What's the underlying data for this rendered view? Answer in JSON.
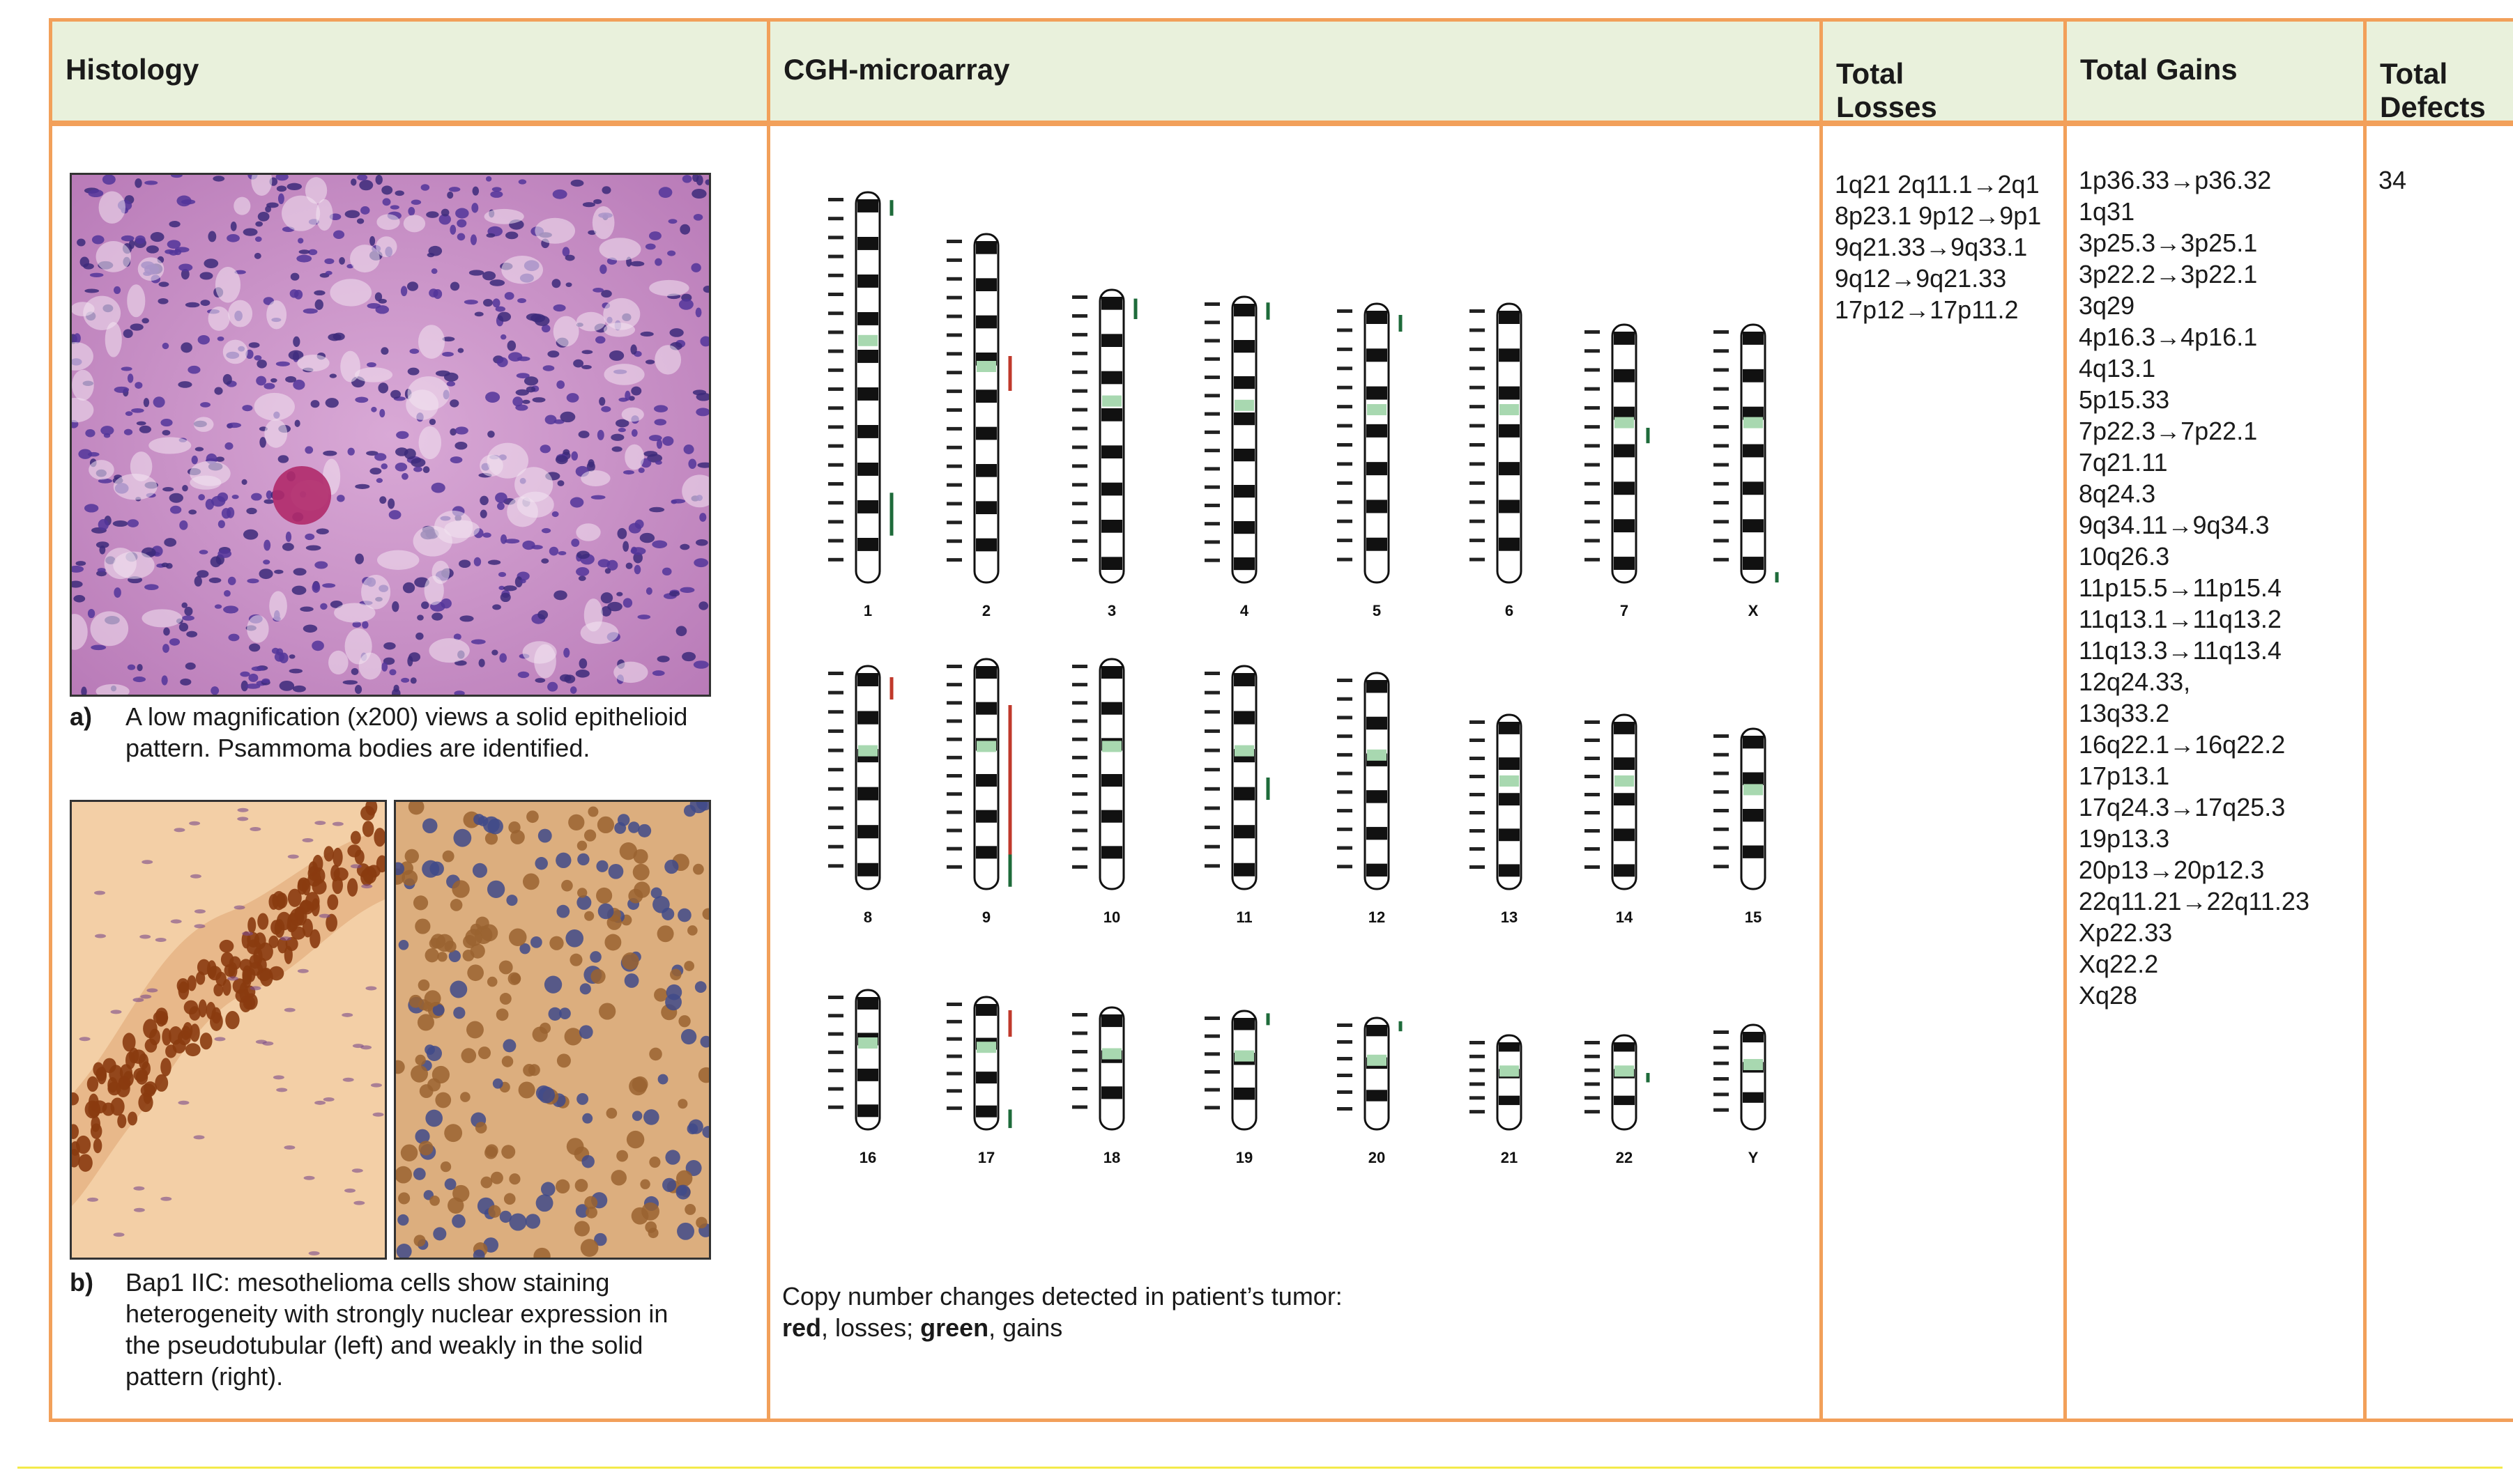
{
  "headers": {
    "histology": "Histology",
    "cgh": "CGH-microarray",
    "losses_line1": "Total",
    "losses_line2": "Losses",
    "gains": "Total Gains",
    "defects_line1": "Total",
    "defects_line2": "Defects"
  },
  "histology": {
    "caption_a_label": "a)",
    "caption_a_line1": "A low magnification (x200) views a solid epithelioid",
    "caption_a_line2": "pattern. Psammoma bodies are identified.",
    "caption_b_label": "b)",
    "caption_b_line1": "Bap1 IIC: mesothelioma cells show staining",
    "caption_b_line2": "heterogeneity with strongly nuclear expression in",
    "caption_b_line3": "the pseudotubular (left) and weakly in the solid",
    "caption_b_line4": "pattern (right).",
    "colors": {
      "he_stain": "#c98fc4",
      "ihc_stain": "#f1c79a"
    }
  },
  "cgh": {
    "row1": [
      "1",
      "2",
      "3",
      "4",
      "5",
      "6",
      "7",
      "X"
    ],
    "row2": [
      "8",
      "9",
      "10",
      "11",
      "12",
      "13",
      "14",
      "15"
    ],
    "row3": [
      "16",
      "17",
      "18",
      "19",
      "20",
      "21",
      "22",
      "Y"
    ],
    "legend_line1": "Copy number changes detected in patient’s tumor:",
    "legend_red": "red",
    "legend_mid": ", losses; ",
    "legend_green": "green",
    "legend_end": ", gains",
    "colors": {
      "loss": "#c0392b",
      "gain": "#1e6b3a",
      "centromere": "#a8d8b0"
    }
  },
  "losses": [
    "1q21 2q11.1→2q1",
    "8p23.1 9p12→9p1",
    "9q21.33→9q33.1",
    "9q12→9q21.33",
    "17p12→17p11.2"
  ],
  "gains": [
    "1p36.33→p36.32",
    "1q31",
    "3p25.3→3p25.1",
    "3p22.2→3p22.1",
    "3q29",
    "4p16.3→4p16.1",
    "4q13.1",
    "5p15.33",
    "7p22.3→7p22.1",
    "7q21.11",
    "8q24.3",
    "9q34.11→9q34.3",
    "10q26.3",
    "11p15.5→11p15.4",
    "11q13.1→11q13.2",
    "11q13.3→11q13.4",
    "12q24.33,",
    "13q33.2",
    "16q22.1→16q22.2",
    "17p13.1",
    "17q24.3→17q25.3",
    "19p13.3",
    "20p13→20p12.3",
    "22q11.21→22q11.23",
    "Xp22.33",
    "Xq22.2",
    "Xq28"
  ],
  "total_defects": "34",
  "frame_color": "#f2a05a",
  "header_bg": "#e9f1dc"
}
